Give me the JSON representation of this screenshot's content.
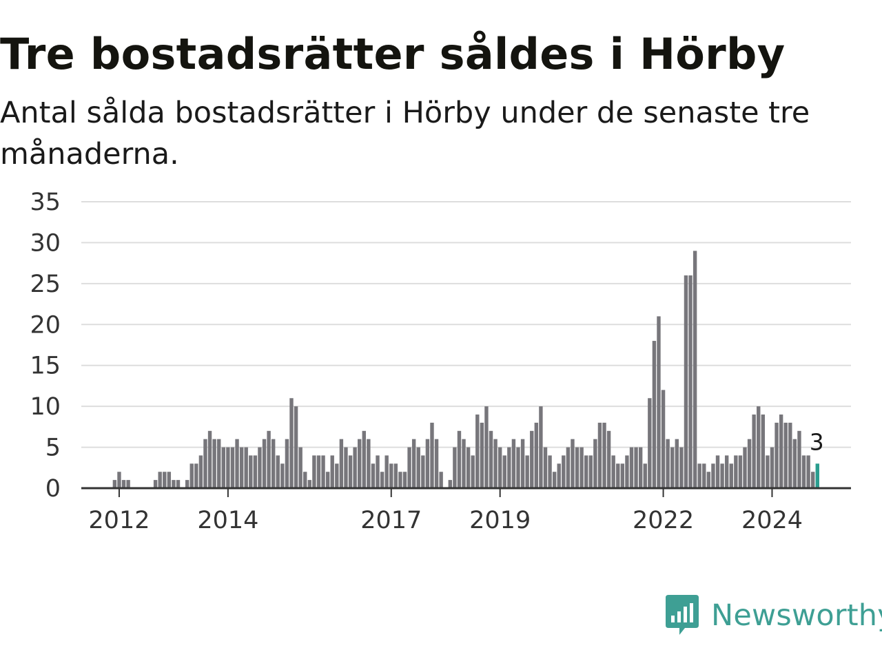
{
  "title": "Tre bostadsrätter såldes i Hörby",
  "subtitle": "Antal sålda bostadsrätter i Hörby under de senaste tre månaderna.",
  "brand": {
    "name": "Newsworthy",
    "icon": "newsworthy-logo-icon"
  },
  "colors": {
    "bar": "#77767b",
    "highlight": "#2a9d8f",
    "grid": "#dddddd",
    "axis": "#333333",
    "brand": "#3e9f94"
  },
  "chart_data": {
    "type": "bar",
    "x_start": "2011-01",
    "frequency": "monthly",
    "x_ticks": [
      "2012",
      "2014",
      "2017",
      "2019",
      "2022",
      "2024"
    ],
    "y_ticks": [
      0,
      5,
      10,
      15,
      20,
      25,
      30,
      35
    ],
    "ylim": [
      0,
      35
    ],
    "grid": true,
    "values": [
      0,
      0,
      0,
      0,
      0,
      0,
      0,
      0,
      0,
      0,
      0,
      1,
      2,
      1,
      1,
      0,
      0,
      0,
      0,
      0,
      1,
      2,
      2,
      2,
      1,
      1,
      0,
      1,
      3,
      3,
      4,
      6,
      7,
      6,
      6,
      5,
      5,
      5,
      6,
      5,
      5,
      4,
      4,
      5,
      6,
      7,
      6,
      4,
      3,
      6,
      11,
      10,
      5,
      2,
      1,
      4,
      4,
      4,
      2,
      4,
      3,
      6,
      5,
      4,
      5,
      6,
      7,
      6,
      3,
      4,
      2,
      4,
      3,
      3,
      2,
      2,
      5,
      6,
      5,
      4,
      6,
      8,
      6,
      2,
      0,
      1,
      5,
      7,
      6,
      5,
      4,
      9,
      8,
      10,
      7,
      6,
      5,
      4,
      5,
      6,
      5,
      6,
      4,
      7,
      8,
      10,
      5,
      4,
      2,
      3,
      4,
      5,
      6,
      5,
      5,
      4,
      4,
      6,
      8,
      8,
      7,
      4,
      3,
      3,
      4,
      5,
      5,
      5,
      3,
      11,
      18,
      21,
      12,
      6,
      5,
      6,
      5,
      26,
      26,
      29,
      3,
      3,
      2,
      3,
      4,
      3,
      4,
      3,
      4,
      4,
      5,
      6,
      9,
      10,
      9,
      4,
      5,
      8,
      9,
      8,
      8,
      6,
      7,
      4,
      4,
      2,
      3
    ],
    "highlight_last": true,
    "annotation": {
      "label": "3",
      "value": 3
    }
  }
}
